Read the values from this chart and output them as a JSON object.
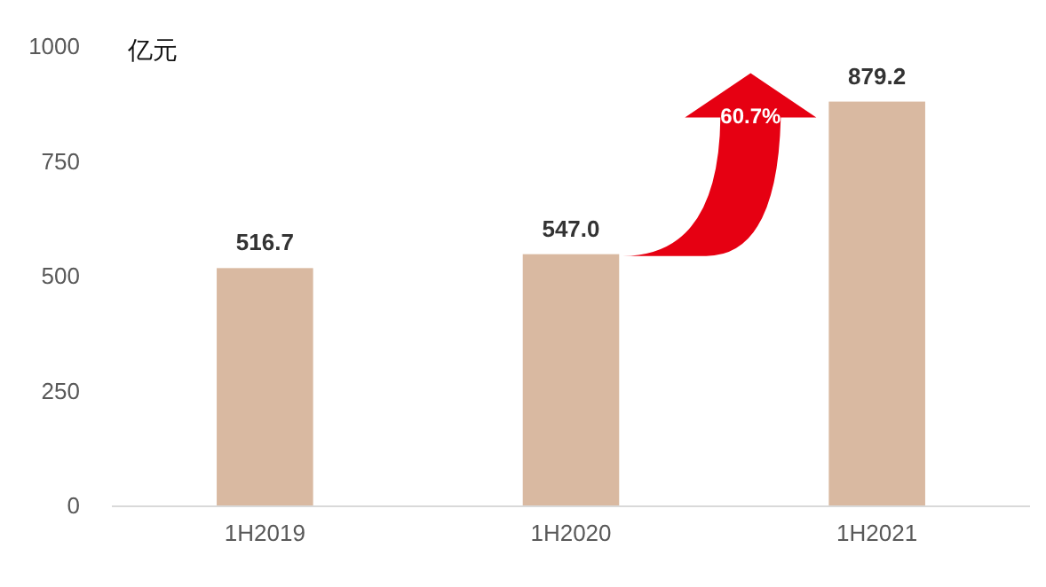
{
  "chart_data": {
    "type": "bar",
    "ylabel": "亿元",
    "categories": [
      "1H2019",
      "1H2020",
      "1H2021"
    ],
    "values": [
      516.7,
      547.0,
      879.2
    ],
    "value_labels": [
      "516.7",
      "547.0",
      "879.2"
    ],
    "color": "#d9b9a1",
    "ylim": [
      0,
      1000
    ],
    "yticks": [
      0,
      250,
      500,
      750,
      1000
    ],
    "grid": false,
    "annotations": [
      "60.7%"
    ]
  }
}
